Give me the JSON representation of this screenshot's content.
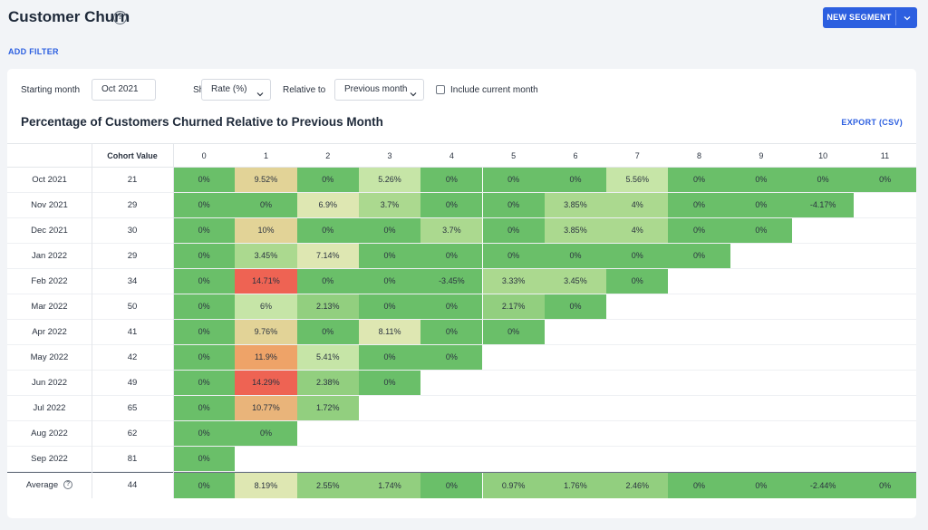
{
  "header": {
    "title": "Customer Churn",
    "new_segment_label": "NEW SEGMENT"
  },
  "filters": {
    "add_filter_label": "ADD FILTER"
  },
  "controls": {
    "starting_month_label": "Starting month",
    "starting_month_value": "Oct 2021",
    "show_label": "Show",
    "show_value": "Rate (%)",
    "relative_to_label": "Relative to",
    "relative_to_value": "Previous month",
    "include_current_label": "Include current month",
    "include_current_checked": false
  },
  "chart": {
    "title": "Percentage of Customers Churned Relative to Previous Month",
    "export_label": "EXPORT (CSV)"
  },
  "table": {
    "cohort_header": "Cohort Value",
    "columns": [
      "0",
      "1",
      "2",
      "3",
      "4",
      "5",
      "6",
      "7",
      "8",
      "9",
      "10",
      "11"
    ],
    "rows": [
      {
        "month": "Oct 2021",
        "cohort": "21",
        "values": [
          0,
          9.52,
          0,
          5.26,
          0,
          0,
          0,
          5.56,
          0,
          0,
          0,
          0
        ]
      },
      {
        "month": "Nov 2021",
        "cohort": "29",
        "values": [
          0,
          0,
          6.9,
          3.7,
          0,
          0,
          3.85,
          4,
          0,
          0,
          -4.17
        ]
      },
      {
        "month": "Dec 2021",
        "cohort": "30",
        "values": [
          0,
          10,
          0,
          0,
          3.7,
          0,
          3.85,
          4,
          0,
          0
        ]
      },
      {
        "month": "Jan 2022",
        "cohort": "29",
        "values": [
          0,
          3.45,
          7.14,
          0,
          0,
          0,
          0,
          0,
          0
        ]
      },
      {
        "month": "Feb 2022",
        "cohort": "34",
        "values": [
          0,
          14.71,
          0,
          0,
          -3.45,
          3.33,
          3.45,
          0
        ]
      },
      {
        "month": "Mar 2022",
        "cohort": "50",
        "values": [
          0,
          6,
          2.13,
          0,
          0,
          2.17,
          0
        ]
      },
      {
        "month": "Apr 2022",
        "cohort": "41",
        "values": [
          0,
          9.76,
          0,
          8.11,
          0,
          0
        ]
      },
      {
        "month": "May 2022",
        "cohort": "42",
        "values": [
          0,
          11.9,
          5.41,
          0,
          0
        ]
      },
      {
        "month": "Jun 2022",
        "cohort": "49",
        "values": [
          0,
          14.29,
          2.38,
          0
        ]
      },
      {
        "month": "Jul 2022",
        "cohort": "65",
        "values": [
          0,
          10.77,
          1.72
        ]
      },
      {
        "month": "Aug 2022",
        "cohort": "62",
        "values": [
          0,
          0
        ]
      },
      {
        "month": "Sep 2022",
        "cohort": "81",
        "values": [
          0
        ]
      }
    ],
    "average": {
      "label": "Average",
      "cohort": "44",
      "values": [
        0,
        8.19,
        2.55,
        1.74,
        0,
        0.97,
        1.76,
        2.46,
        0,
        0,
        -2.44,
        0
      ]
    }
  },
  "colors": {
    "accent": "#2c5fe0",
    "scale_green": "#6abf69",
    "scale_light_green": "#c6e5a7",
    "scale_yellow": "#e2d397",
    "scale_orange": "#eea368",
    "scale_red": "#ee6353"
  }
}
